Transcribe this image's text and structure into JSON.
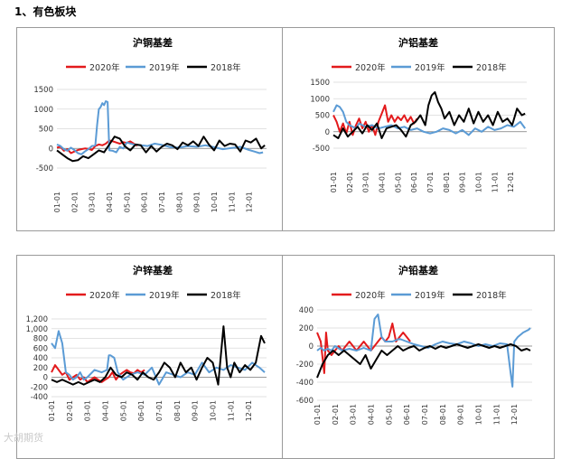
{
  "section_title": "1、有色板块",
  "watermark": "大胡期货",
  "colors": {
    "s2020": "#e31a1c",
    "s2019": "#5b9bd5",
    "s2018": "#000000",
    "grid": "#d9d9d9",
    "axis": "#7f7f7f"
  },
  "chart_data": [
    {
      "type": "line",
      "title": "沪铜基差",
      "legend": [
        "2020年",
        "2019年",
        "2018年"
      ],
      "xticks": [
        "01-01",
        "02-01",
        "03-01",
        "04-01",
        "05-01",
        "06-01",
        "07-01",
        "08-01",
        "09-01",
        "10-01",
        "11-01",
        "12-01"
      ],
      "yticks": [
        "-500",
        "0",
        "500",
        "1000",
        "1500"
      ],
      "ylim": [
        -500,
        1500
      ],
      "series": [
        {
          "name": "2020年",
          "x": [
            0,
            0.2,
            0.4,
            0.6,
            0.8,
            1.0,
            1.2,
            1.4,
            1.6,
            1.8,
            2.0,
            2.2,
            2.4,
            2.6,
            2.8,
            3.0,
            3.2,
            3.4,
            3.6,
            3.8,
            4.0,
            4.2,
            4.4,
            4.6
          ],
          "values": [
            20,
            40,
            -60,
            -20,
            -120,
            -80,
            -40,
            -20,
            0,
            -10,
            -40,
            60,
            100,
            80,
            120,
            200,
            180,
            150,
            120,
            160,
            140,
            180,
            120,
            60
          ]
        },
        {
          "name": "2019年",
          "x": [
            0,
            0.2,
            0.4,
            0.6,
            0.8,
            1.0,
            1.2,
            1.4,
            1.6,
            1.8,
            2.0,
            2.2,
            2.3,
            2.4,
            2.5,
            2.6,
            2.7,
            2.8,
            2.9,
            3.0,
            3.2,
            3.4,
            3.6,
            3.8,
            4.0,
            4.4,
            4.8,
            5.2,
            5.6,
            6.0,
            6.5,
            7.0,
            7.5,
            8.0,
            8.5,
            9.0,
            9.5,
            10.0,
            10.5,
            11.0,
            11.3,
            11.6,
            11.8
          ],
          "values": [
            100,
            60,
            -20,
            -60,
            20,
            -40,
            -120,
            -150,
            -80,
            -20,
            60,
            80,
            600,
            1000,
            1050,
            1150,
            1100,
            1200,
            1180,
            -50,
            -60,
            -100,
            40,
            0,
            150,
            100,
            80,
            60,
            120,
            90,
            30,
            20,
            60,
            40,
            80,
            30,
            -20,
            10,
            40,
            -40,
            -80,
            -120,
            -100
          ]
        },
        {
          "name": "2018年",
          "x": [
            0,
            0.3,
            0.6,
            0.9,
            1.2,
            1.5,
            1.8,
            2.1,
            2.4,
            2.7,
            3.0,
            3.3,
            3.6,
            3.9,
            4.2,
            4.5,
            4.8,
            5.1,
            5.4,
            5.7,
            6.0,
            6.3,
            6.6,
            6.9,
            7.2,
            7.5,
            7.8,
            8.1,
            8.4,
            8.7,
            9.0,
            9.3,
            9.6,
            9.9,
            10.2,
            10.5,
            10.8,
            11.1,
            11.4,
            11.7,
            11.9
          ],
          "values": [
            -50,
            -150,
            -250,
            -320,
            -300,
            -200,
            -250,
            -150,
            -50,
            -100,
            100,
            300,
            250,
            50,
            -50,
            100,
            80,
            -100,
            60,
            -80,
            40,
            120,
            80,
            -20,
            150,
            80,
            180,
            60,
            300,
            100,
            -50,
            200,
            60,
            120,
            100,
            -80,
            200,
            150,
            250,
            0,
            80
          ]
        }
      ]
    },
    {
      "type": "line",
      "title": "沪铝基差",
      "legend": [
        "2020年",
        "2019年",
        "2018年"
      ],
      "xticks": [
        "01-01",
        "02-01",
        "03-01",
        "04-01",
        "05-01",
        "06-01",
        "07-01",
        "08-01",
        "09-01",
        "10-01",
        "11-01",
        "12-01"
      ],
      "yticks": [
        "-500",
        "0",
        "500",
        "1000",
        "1500"
      ],
      "ylim": [
        -500,
        1500
      ],
      "series": [
        {
          "name": "2020年",
          "x": [
            0,
            0.2,
            0.4,
            0.6,
            0.8,
            1.0,
            1.2,
            1.4,
            1.6,
            1.8,
            2.0,
            2.2,
            2.4,
            2.6,
            2.8,
            3.0,
            3.2,
            3.4,
            3.6,
            3.8,
            4.0,
            4.2,
            4.4,
            4.6,
            4.8,
            5.0,
            5.2
          ],
          "values": [
            500,
            300,
            0,
            250,
            -50,
            300,
            -100,
            200,
            400,
            100,
            300,
            0,
            200,
            -100,
            300,
            550,
            800,
            300,
            500,
            300,
            450,
            350,
            500,
            300,
            450,
            250,
            400
          ]
        },
        {
          "name": "2019年",
          "x": [
            0,
            0.2,
            0.4,
            0.6,
            0.8,
            1.0,
            1.2,
            1.4,
            1.6,
            1.8,
            2.0,
            2.4,
            2.8,
            3.2,
            3.6,
            4.0,
            4.4,
            4.8,
            5.2,
            5.6,
            6.0,
            6.4,
            6.8,
            7.2,
            7.6,
            8.0,
            8.4,
            8.8,
            9.2,
            9.6,
            10.0,
            10.4,
            10.8,
            11.2,
            11.6,
            11.9
          ],
          "values": [
            600,
            800,
            750,
            600,
            300,
            200,
            150,
            100,
            250,
            200,
            150,
            200,
            100,
            150,
            200,
            100,
            150,
            50,
            100,
            0,
            -50,
            0,
            100,
            50,
            -50,
            50,
            -100,
            100,
            0,
            150,
            50,
            100,
            200,
            150,
            300,
            100
          ]
        },
        {
          "name": "2018年",
          "x": [
            0,
            0.3,
            0.6,
            0.9,
            1.2,
            1.5,
            1.8,
            2.1,
            2.4,
            2.7,
            3.0,
            3.3,
            3.6,
            3.9,
            4.2,
            4.5,
            4.8,
            5.1,
            5.4,
            5.7,
            5.9,
            6.1,
            6.3,
            6.5,
            6.7,
            6.9,
            7.2,
            7.5,
            7.8,
            8.1,
            8.4,
            8.7,
            9.0,
            9.3,
            9.6,
            9.9,
            10.2,
            10.5,
            10.8,
            11.1,
            11.4,
            11.7,
            11.9
          ],
          "values": [
            -100,
            -200,
            100,
            -150,
            0,
            150,
            -50,
            200,
            50,
            250,
            -200,
            100,
            150,
            200,
            50,
            -150,
            200,
            300,
            500,
            200,
            800,
            1100,
            1200,
            900,
            700,
            400,
            600,
            200,
            500,
            300,
            700,
            250,
            600,
            300,
            500,
            200,
            600,
            300,
            400,
            200,
            700,
            500,
            550
          ]
        }
      ]
    },
    {
      "type": "line",
      "title": "沪锌基差",
      "legend": [
        "2020年",
        "2019年",
        "2018年"
      ],
      "xticks": [
        "01-01",
        "02-01",
        "03-01",
        "04-01",
        "05-01",
        "06-01",
        "07-01",
        "08-01",
        "09-01",
        "10-01",
        "11-01",
        "12-01"
      ],
      "yticks": [
        "-400",
        "-200",
        "0",
        "200",
        "400",
        "600",
        "800",
        "1,000",
        "1,200"
      ],
      "ylim": [
        -400,
        1200
      ],
      "series": [
        {
          "name": "2020年",
          "x": [
            0,
            0.2,
            0.4,
            0.6,
            0.8,
            1.0,
            1.2,
            1.4,
            1.6,
            1.8,
            2.0,
            2.2,
            2.4,
            2.6,
            2.8,
            3.0,
            3.2,
            3.4,
            3.6,
            3.8,
            4.0,
            4.2,
            4.4,
            4.6,
            4.8,
            5.0,
            5.2
          ],
          "values": [
            100,
            250,
            150,
            50,
            100,
            -50,
            0,
            50,
            -50,
            0,
            -100,
            -50,
            0,
            -50,
            -100,
            -50,
            0,
            100,
            -50,
            50,
            100,
            150,
            100,
            80,
            150,
            100,
            150
          ]
        },
        {
          "name": "2019年",
          "x": [
            0,
            0.2,
            0.4,
            0.6,
            0.8,
            1.0,
            1.2,
            1.4,
            1.6,
            1.8,
            2.0,
            2.4,
            2.8,
            3.1,
            3.2,
            3.3,
            3.5,
            3.7,
            4.0,
            4.4,
            4.8,
            5.2,
            5.6,
            6.0,
            6.4,
            6.8,
            7.2,
            7.6,
            8.0,
            8.4,
            8.8,
            9.2,
            9.6,
            10.0,
            10.4,
            10.8,
            11.2,
            11.6,
            11.9
          ],
          "values": [
            700,
            600,
            950,
            700,
            100,
            50,
            -50,
            0,
            100,
            -50,
            0,
            150,
            100,
            150,
            450,
            450,
            400,
            100,
            -50,
            50,
            100,
            50,
            200,
            -150,
            100,
            50,
            0,
            100,
            50,
            300,
            100,
            200,
            150,
            250,
            200,
            150,
            300,
            200,
            100
          ]
        },
        {
          "name": "2018年",
          "x": [
            0,
            0.3,
            0.6,
            0.9,
            1.2,
            1.5,
            1.8,
            2.1,
            2.4,
            2.7,
            3.0,
            3.3,
            3.6,
            3.9,
            4.2,
            4.5,
            4.8,
            5.1,
            5.4,
            5.7,
            6.0,
            6.3,
            6.6,
            6.9,
            7.2,
            7.5,
            7.8,
            8.1,
            8.4,
            8.7,
            9.0,
            9.3,
            9.6,
            9.8,
            10.0,
            10.2,
            10.5,
            10.8,
            11.1,
            11.4,
            11.7,
            11.9
          ],
          "values": [
            -50,
            -100,
            -50,
            -100,
            -150,
            -100,
            -150,
            -100,
            -50,
            -100,
            0,
            200,
            50,
            0,
            100,
            50,
            -50,
            100,
            0,
            -50,
            100,
            300,
            200,
            0,
            300,
            100,
            200,
            -50,
            200,
            400,
            300,
            -150,
            1050,
            200,
            0,
            300,
            100,
            250,
            150,
            300,
            850,
            700
          ]
        }
      ]
    },
    {
      "type": "line",
      "title": "沪铅基差",
      "legend": [
        "2020年",
        "2019年",
        "2018年"
      ],
      "xticks": [
        "01-01",
        "02-01",
        "03-01",
        "04-01",
        "05-01",
        "06-01",
        "07-01",
        "08-01",
        "09-01",
        "10-01",
        "11-01",
        "12-01"
      ],
      "yticks": [
        "-600",
        "-400",
        "-200",
        "0",
        "200",
        "400"
      ],
      "ylim": [
        -600,
        400
      ],
      "series": [
        {
          "name": "2020年",
          "x": [
            0,
            0.2,
            0.4,
            0.5,
            0.6,
            0.8,
            1.0,
            1.2,
            1.4,
            1.6,
            1.8,
            2.0,
            2.2,
            2.4,
            2.6,
            2.8,
            3.0,
            3.2,
            3.4,
            3.6,
            3.8,
            4.0,
            4.2,
            4.4,
            4.6,
            4.8,
            5.0,
            5.2
          ],
          "values": [
            150,
            50,
            -300,
            150,
            -50,
            -100,
            -50,
            0,
            -50,
            0,
            50,
            0,
            -50,
            0,
            50,
            0,
            -50,
            0,
            50,
            100,
            50,
            100,
            250,
            50,
            100,
            150,
            100,
            50
          ]
        },
        {
          "name": "2019年",
          "x": [
            0,
            0.2,
            0.4,
            0.6,
            0.8,
            1.0,
            1.4,
            1.8,
            2.2,
            2.6,
            3.0,
            3.2,
            3.4,
            3.6,
            3.8,
            4.2,
            4.6,
            5.0,
            5.4,
            5.8,
            6.2,
            6.6,
            7.0,
            7.4,
            7.8,
            8.2,
            8.6,
            9.0,
            9.4,
            9.8,
            10.2,
            10.6,
            10.8,
            10.9,
            11.0,
            11.2,
            11.5,
            11.8,
            11.9
          ],
          "values": [
            -50,
            -20,
            -50,
            -30,
            -50,
            0,
            -50,
            -30,
            -50,
            -20,
            -50,
            300,
            350,
            100,
            50,
            50,
            80,
            50,
            20,
            0,
            -20,
            20,
            50,
            30,
            20,
            50,
            30,
            0,
            20,
            0,
            30,
            20,
            -300,
            -450,
            50,
            100,
            150,
            180,
            200
          ]
        },
        {
          "name": "2018年",
          "x": [
            0,
            0.3,
            0.6,
            0.9,
            1.2,
            1.5,
            1.8,
            2.1,
            2.4,
            2.7,
            3.0,
            3.3,
            3.6,
            3.9,
            4.2,
            4.5,
            4.8,
            5.1,
            5.4,
            5.7,
            6.0,
            6.3,
            6.6,
            6.9,
            7.2,
            7.5,
            7.8,
            8.1,
            8.4,
            8.7,
            9.0,
            9.3,
            9.6,
            9.9,
            10.2,
            10.5,
            10.8,
            11.1,
            11.4,
            11.7,
            11.9
          ],
          "values": [
            -350,
            -200,
            -100,
            -50,
            -100,
            -50,
            -100,
            -150,
            -200,
            -100,
            -250,
            -150,
            -50,
            -100,
            -50,
            0,
            -50,
            -20,
            0,
            -50,
            -20,
            0,
            -30,
            0,
            -20,
            0,
            20,
            0,
            -20,
            0,
            20,
            0,
            -20,
            0,
            -20,
            0,
            20,
            0,
            -50,
            -30,
            -50
          ]
        }
      ]
    }
  ]
}
